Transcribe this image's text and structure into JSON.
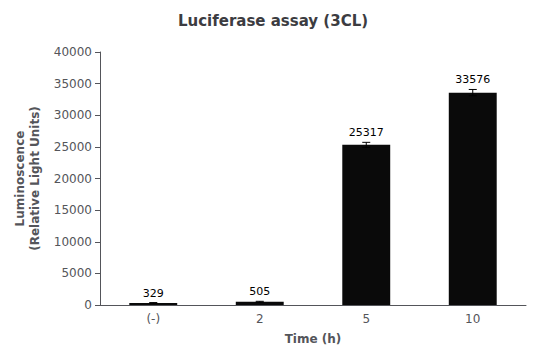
{
  "chart_data": {
    "type": "bar",
    "title": "Luciferase assay (3CL)",
    "categories": [
      "(-)",
      "2",
      "5",
      "10"
    ],
    "values": [
      329,
      505,
      25317,
      33576
    ],
    "errors": [
      50,
      80,
      400,
      500
    ],
    "color": "#0a0a0a",
    "xlabel": "Time (h)",
    "ylabel": "Luminoscence\n(Relative Light Units)",
    "ylim": [
      0,
      40000
    ],
    "yticks": [
      0,
      5000,
      10000,
      15000,
      20000,
      25000,
      30000,
      35000,
      40000
    ],
    "grid": false,
    "data_labels": true
  }
}
